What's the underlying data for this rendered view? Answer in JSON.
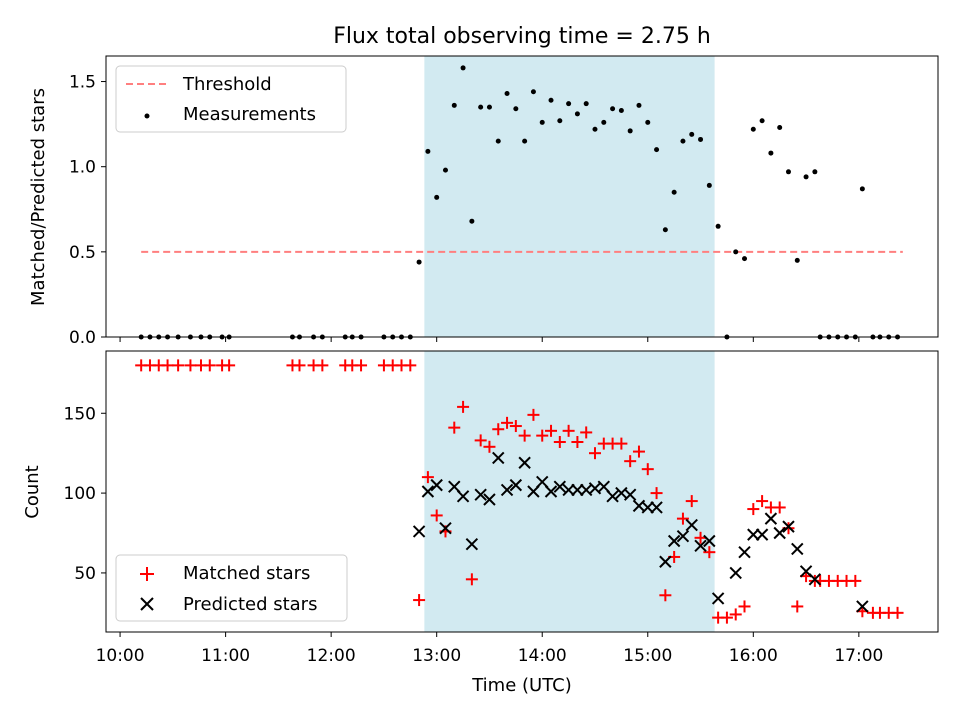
{
  "chart_data": [
    {
      "type": "scatter",
      "title": "Flux total observing time = 2.75 h",
      "ylabel": "Matched/Predicted stars",
      "xlim": [
        "09:52",
        "17:45"
      ],
      "ylim": [
        0,
        1.65
      ],
      "xticks": [
        "10:00",
        "11:00",
        "12:00",
        "13:00",
        "14:00",
        "15:00",
        "16:00",
        "17:00"
      ],
      "yticks": [
        "0.0",
        "0.5",
        "1.0",
        "1.5"
      ],
      "shaded_interval": {
        "start": "12:53",
        "end": "15:38",
        "color": "#add8e6"
      },
      "legend": {
        "position": "top-left",
        "entries": [
          "Threshold",
          "Measurements"
        ]
      },
      "series": [
        {
          "name": "Threshold",
          "style": "dashed-line",
          "color": "#ff7f7f",
          "points": [
            [
              "10:12",
              0.5
            ],
            [
              "17:25",
              0.5
            ]
          ]
        },
        {
          "name": "Measurements",
          "style": "dot",
          "color": "#000000",
          "points": [
            [
              "10:12",
              0
            ],
            [
              "10:17",
              0
            ],
            [
              "10:22",
              0
            ],
            [
              "10:27",
              0
            ],
            [
              "10:33",
              0
            ],
            [
              "10:40",
              0
            ],
            [
              "10:46",
              0
            ],
            [
              "10:51",
              0
            ],
            [
              "10:58",
              0
            ],
            [
              "11:02",
              0
            ],
            [
              "11:38",
              0
            ],
            [
              "11:42",
              0
            ],
            [
              "11:50",
              0
            ],
            [
              "11:55",
              0
            ],
            [
              "12:08",
              0
            ],
            [
              "12:12",
              0
            ],
            [
              "12:17",
              0
            ],
            [
              "12:30",
              0
            ],
            [
              "12:35",
              0
            ],
            [
              "12:40",
              0
            ],
            [
              "12:45",
              0
            ],
            [
              "12:50",
              0.44
            ],
            [
              "12:55",
              1.09
            ],
            [
              "13:00",
              0.82
            ],
            [
              "13:05",
              0.98
            ],
            [
              "13:10",
              1.36
            ],
            [
              "13:15",
              1.58
            ],
            [
              "13:20",
              0.68
            ],
            [
              "13:25",
              1.35
            ],
            [
              "13:30",
              1.35
            ],
            [
              "13:35",
              1.15
            ],
            [
              "13:40",
              1.43
            ],
            [
              "13:45",
              1.34
            ],
            [
              "13:50",
              1.15
            ],
            [
              "13:55",
              1.44
            ],
            [
              "14:00",
              1.26
            ],
            [
              "14:05",
              1.39
            ],
            [
              "14:10",
              1.27
            ],
            [
              "14:15",
              1.37
            ],
            [
              "14:20",
              1.31
            ],
            [
              "14:25",
              1.37
            ],
            [
              "14:30",
              1.22
            ],
            [
              "14:35",
              1.26
            ],
            [
              "14:40",
              1.34
            ],
            [
              "14:45",
              1.33
            ],
            [
              "14:50",
              1.21
            ],
            [
              "14:55",
              1.36
            ],
            [
              "15:00",
              1.26
            ],
            [
              "15:05",
              1.1
            ],
            [
              "15:10",
              0.63
            ],
            [
              "15:15",
              0.85
            ],
            [
              "15:20",
              1.15
            ],
            [
              "15:25",
              1.19
            ],
            [
              "15:30",
              1.16
            ],
            [
              "15:35",
              0.89
            ],
            [
              "15:40",
              0.65
            ],
            [
              "15:45",
              0
            ],
            [
              "15:50",
              0.5
            ],
            [
              "15:55",
              0.46
            ],
            [
              "16:00",
              1.22
            ],
            [
              "16:05",
              1.27
            ],
            [
              "16:10",
              1.08
            ],
            [
              "16:15",
              1.23
            ],
            [
              "16:20",
              0.97
            ],
            [
              "16:25",
              0.45
            ],
            [
              "16:30",
              0.94
            ],
            [
              "16:35",
              0.97
            ],
            [
              "16:38",
              0
            ],
            [
              "16:43",
              0
            ],
            [
              "16:48",
              0
            ],
            [
              "16:53",
              0
            ],
            [
              "16:58",
              0
            ],
            [
              "17:02",
              0.87
            ],
            [
              "17:08",
              0
            ],
            [
              "17:12",
              0
            ],
            [
              "17:17",
              0
            ],
            [
              "17:22",
              0
            ]
          ]
        }
      ]
    },
    {
      "type": "scatter",
      "xlabel": "Time (UTC)",
      "ylabel": "Count",
      "xlim": [
        "09:52",
        "17:45"
      ],
      "ylim": [
        13,
        189
      ],
      "xticks": [
        "10:00",
        "11:00",
        "12:00",
        "13:00",
        "14:00",
        "15:00",
        "16:00",
        "17:00"
      ],
      "yticks": [
        "50",
        "100",
        "150"
      ],
      "shaded_interval": {
        "start": "12:53",
        "end": "15:38",
        "color": "#add8e6"
      },
      "legend": {
        "position": "bottom-left",
        "entries": [
          "Matched stars",
          "Predicted stars"
        ]
      },
      "series": [
        {
          "name": "Matched stars",
          "marker": "+",
          "color": "#ff0000",
          "points": [
            [
              "10:12",
              180
            ],
            [
              "10:17",
              180
            ],
            [
              "10:22",
              180
            ],
            [
              "10:27",
              180
            ],
            [
              "10:33",
              180
            ],
            [
              "10:40",
              180
            ],
            [
              "10:46",
              180
            ],
            [
              "10:51",
              180
            ],
            [
              "10:58",
              180
            ],
            [
              "11:02",
              180
            ],
            [
              "11:38",
              180
            ],
            [
              "11:42",
              180
            ],
            [
              "11:50",
              180
            ],
            [
              "11:55",
              180
            ],
            [
              "12:08",
              180
            ],
            [
              "12:12",
              180
            ],
            [
              "12:17",
              180
            ],
            [
              "12:30",
              180
            ],
            [
              "12:35",
              180
            ],
            [
              "12:40",
              180
            ],
            [
              "12:45",
              180
            ],
            [
              "12:50",
              33
            ],
            [
              "12:55",
              110
            ],
            [
              "13:00",
              86
            ],
            [
              "13:05",
              76
            ],
            [
              "13:10",
              141
            ],
            [
              "13:15",
              154
            ],
            [
              "13:20",
              46
            ],
            [
              "13:25",
              133
            ],
            [
              "13:30",
              129
            ],
            [
              "13:35",
              140
            ],
            [
              "13:40",
              144
            ],
            [
              "13:45",
              142
            ],
            [
              "13:50",
              136
            ],
            [
              "13:55",
              149
            ],
            [
              "14:00",
              136
            ],
            [
              "14:05",
              139
            ],
            [
              "14:10",
              132
            ],
            [
              "14:15",
              139
            ],
            [
              "14:20",
              132
            ],
            [
              "14:25",
              138
            ],
            [
              "14:30",
              125
            ],
            [
              "14:35",
              131
            ],
            [
              "14:40",
              131
            ],
            [
              "14:45",
              131
            ],
            [
              "14:50",
              120
            ],
            [
              "14:55",
              126
            ],
            [
              "15:00",
              115
            ],
            [
              "15:05",
              100
            ],
            [
              "15:10",
              36
            ],
            [
              "15:15",
              60
            ],
            [
              "15:20",
              84
            ],
            [
              "15:25",
              95
            ],
            [
              "15:30",
              72
            ],
            [
              "15:35",
              63
            ],
            [
              "15:40",
              22
            ],
            [
              "15:45",
              22
            ],
            [
              "15:50",
              24
            ],
            [
              "15:55",
              29
            ],
            [
              "16:00",
              90
            ],
            [
              "16:05",
              95
            ],
            [
              "16:10",
              91
            ],
            [
              "16:15",
              91
            ],
            [
              "16:20",
              78
            ],
            [
              "16:25",
              29
            ],
            [
              "16:30",
              48
            ],
            [
              "16:35",
              45
            ],
            [
              "16:38",
              45
            ],
            [
              "16:43",
              45
            ],
            [
              "16:48",
              45
            ],
            [
              "16:53",
              45
            ],
            [
              "16:58",
              45
            ],
            [
              "17:02",
              26
            ],
            [
              "17:08",
              25
            ],
            [
              "17:12",
              25
            ],
            [
              "17:17",
              25
            ],
            [
              "17:22",
              25
            ]
          ]
        },
        {
          "name": "Predicted stars",
          "marker": "x",
          "color": "#000000",
          "points": [
            [
              "12:50",
              76
            ],
            [
              "12:55",
              101
            ],
            [
              "13:00",
              105
            ],
            [
              "13:05",
              78
            ],
            [
              "13:10",
              104
            ],
            [
              "13:15",
              98
            ],
            [
              "13:20",
              68
            ],
            [
              "13:25",
              99
            ],
            [
              "13:30",
              96
            ],
            [
              "13:35",
              122
            ],
            [
              "13:40",
              102
            ],
            [
              "13:45",
              105
            ],
            [
              "13:50",
              119
            ],
            [
              "13:55",
              101
            ],
            [
              "14:00",
              107
            ],
            [
              "14:05",
              101
            ],
            [
              "14:10",
              104
            ],
            [
              "14:15",
              102
            ],
            [
              "14:20",
              102
            ],
            [
              "14:25",
              102
            ],
            [
              "14:30",
              103
            ],
            [
              "14:35",
              104
            ],
            [
              "14:40",
              98
            ],
            [
              "14:45",
              100
            ],
            [
              "14:50",
              99
            ],
            [
              "14:55",
              92
            ],
            [
              "15:00",
              91
            ],
            [
              "15:05",
              91
            ],
            [
              "15:10",
              57
            ],
            [
              "15:15",
              70
            ],
            [
              "15:20",
              73
            ],
            [
              "15:25",
              80
            ],
            [
              "15:30",
              67
            ],
            [
              "15:35",
              70
            ],
            [
              "15:40",
              34
            ],
            [
              "15:50",
              50
            ],
            [
              "15:55",
              63
            ],
            [
              "16:00",
              74
            ],
            [
              "16:05",
              74
            ],
            [
              "16:10",
              84
            ],
            [
              "16:15",
              75
            ],
            [
              "16:20",
              79
            ],
            [
              "16:25",
              65
            ],
            [
              "16:30",
              51
            ],
            [
              "16:35",
              46
            ],
            [
              "17:02",
              29
            ]
          ]
        }
      ]
    }
  ]
}
